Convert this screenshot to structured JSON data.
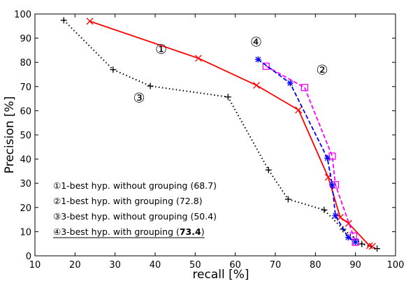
{
  "chart_data": {
    "type": "line",
    "xlabel": "recall [%]",
    "ylabel": "Precision [%]",
    "xlim": [
      10,
      100
    ],
    "ylim": [
      0,
      100
    ],
    "xticks": [
      10,
      20,
      30,
      40,
      50,
      60,
      70,
      80,
      90,
      100
    ],
    "yticks": [
      0,
      10,
      20,
      30,
      40,
      50,
      60,
      70,
      80,
      90,
      100
    ],
    "grid": false,
    "legend_position": "bottom-left",
    "series": [
      {
        "id": "s1",
        "callout": "①",
        "color": "#ff0000",
        "line": "solid",
        "marker": "x",
        "x": [
          23.7,
          50.8,
          65.3,
          75.8,
          83.2,
          86.2,
          88.3,
          93.5,
          94.2
        ],
        "y": [
          97.0,
          81.7,
          70.5,
          60.3,
          32.5,
          15.9,
          13.4,
          4.2,
          3.9
        ]
      },
      {
        "id": "s2",
        "callout": "②",
        "color": "#ff00ff",
        "line": "dashed",
        "marker": "square",
        "x": [
          67.7,
          77.3,
          84.2,
          85.0,
          89.5,
          90.0
        ],
        "y": [
          78.4,
          69.6,
          41.2,
          29.4,
          8.2,
          5.6
        ]
      },
      {
        "id": "s3",
        "callout": "③",
        "color": "#000000",
        "line": "dotted",
        "marker": "plus",
        "x": [
          17.2,
          29.5,
          38.8,
          58.2,
          68.3,
          73.2,
          82.2,
          86.9,
          91.6,
          95.4
        ],
        "y": [
          97.4,
          77.0,
          70.2,
          65.7,
          35.5,
          23.4,
          19.0,
          11.0,
          4.9,
          3.0
        ]
      },
      {
        "id": "s4",
        "callout": "④",
        "color": "#0000ff",
        "line": "dashed",
        "marker": "star",
        "x": [
          65.7,
          73.7,
          83.0,
          84.2,
          85.0,
          88.2,
          90.0
        ],
        "y": [
          81.2,
          71.4,
          40.4,
          29.3,
          16.6,
          7.6,
          5.7
        ]
      }
    ],
    "annotations": [
      {
        "text": "①",
        "x": 41.5,
        "y": 83.5
      },
      {
        "text": "②",
        "x": 81.7,
        "y": 75.0
      },
      {
        "text": "③",
        "x": 36.0,
        "y": 63.5
      },
      {
        "text": "④",
        "x": 65.2,
        "y": 86.5
      }
    ],
    "legend": [
      {
        "label": "①1-best hyp. without grouping (68.7)",
        "bold": ""
      },
      {
        "label": "②1-best hyp. with grouping (72.8)",
        "bold": ""
      },
      {
        "label": "③3-best hyp. without grouping (50.4)",
        "bold": ""
      },
      {
        "label": "④3-best hyp. with grouping (",
        "bold": "73.4",
        "tail": ")",
        "underline": true
      }
    ]
  }
}
